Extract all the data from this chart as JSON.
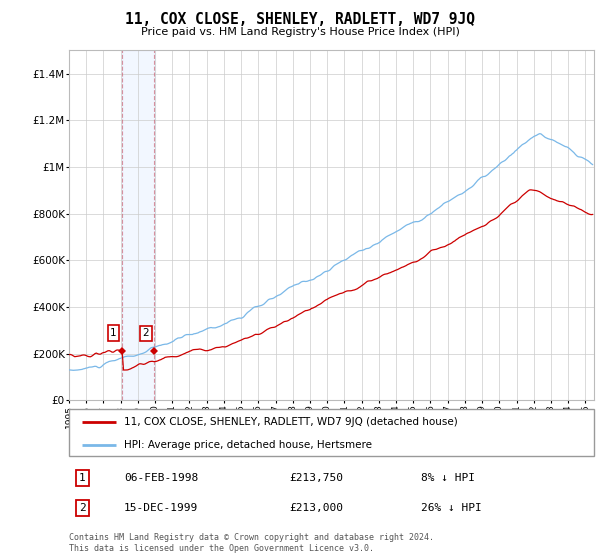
{
  "title": "11, COX CLOSE, SHENLEY, RADLETT, WD7 9JQ",
  "subtitle": "Price paid vs. HM Land Registry's House Price Index (HPI)",
  "hpi_color": "#7ab8e8",
  "price_color": "#cc0000",
  "shade_color": "#ddeeff",
  "background": "#ffffff",
  "grid_color": "#cccccc",
  "ylim": [
    0,
    1500000
  ],
  "yticks": [
    0,
    200000,
    400000,
    600000,
    800000,
    1000000,
    1200000,
    1400000
  ],
  "ytick_labels": [
    "£0",
    "£200K",
    "£400K",
    "£600K",
    "£800K",
    "£1M",
    "£1.2M",
    "£1.4M"
  ],
  "legend_label_price": "11, COX CLOSE, SHENLEY, RADLETT, WD7 9JQ (detached house)",
  "legend_label_hpi": "HPI: Average price, detached house, Hertsmere",
  "purchases": [
    {
      "label": "1",
      "date_num": 1998.09,
      "price": 213750,
      "note": "06-FEB-1998",
      "pct": "8% ↓ HPI"
    },
    {
      "label": "2",
      "date_num": 1999.96,
      "price": 213000,
      "note": "15-DEC-1999",
      "pct": "26% ↓ HPI"
    }
  ],
  "footer": "Contains HM Land Registry data © Crown copyright and database right 2024.\nThis data is licensed under the Open Government Licence v3.0.",
  "xlim": [
    1995.0,
    2025.5
  ],
  "xticks": [
    1995,
    1996,
    1997,
    1998,
    1999,
    2000,
    2001,
    2002,
    2003,
    2004,
    2005,
    2006,
    2007,
    2008,
    2009,
    2010,
    2011,
    2012,
    2013,
    2014,
    2015,
    2016,
    2017,
    2018,
    2019,
    2020,
    2021,
    2022,
    2023,
    2024,
    2025
  ]
}
